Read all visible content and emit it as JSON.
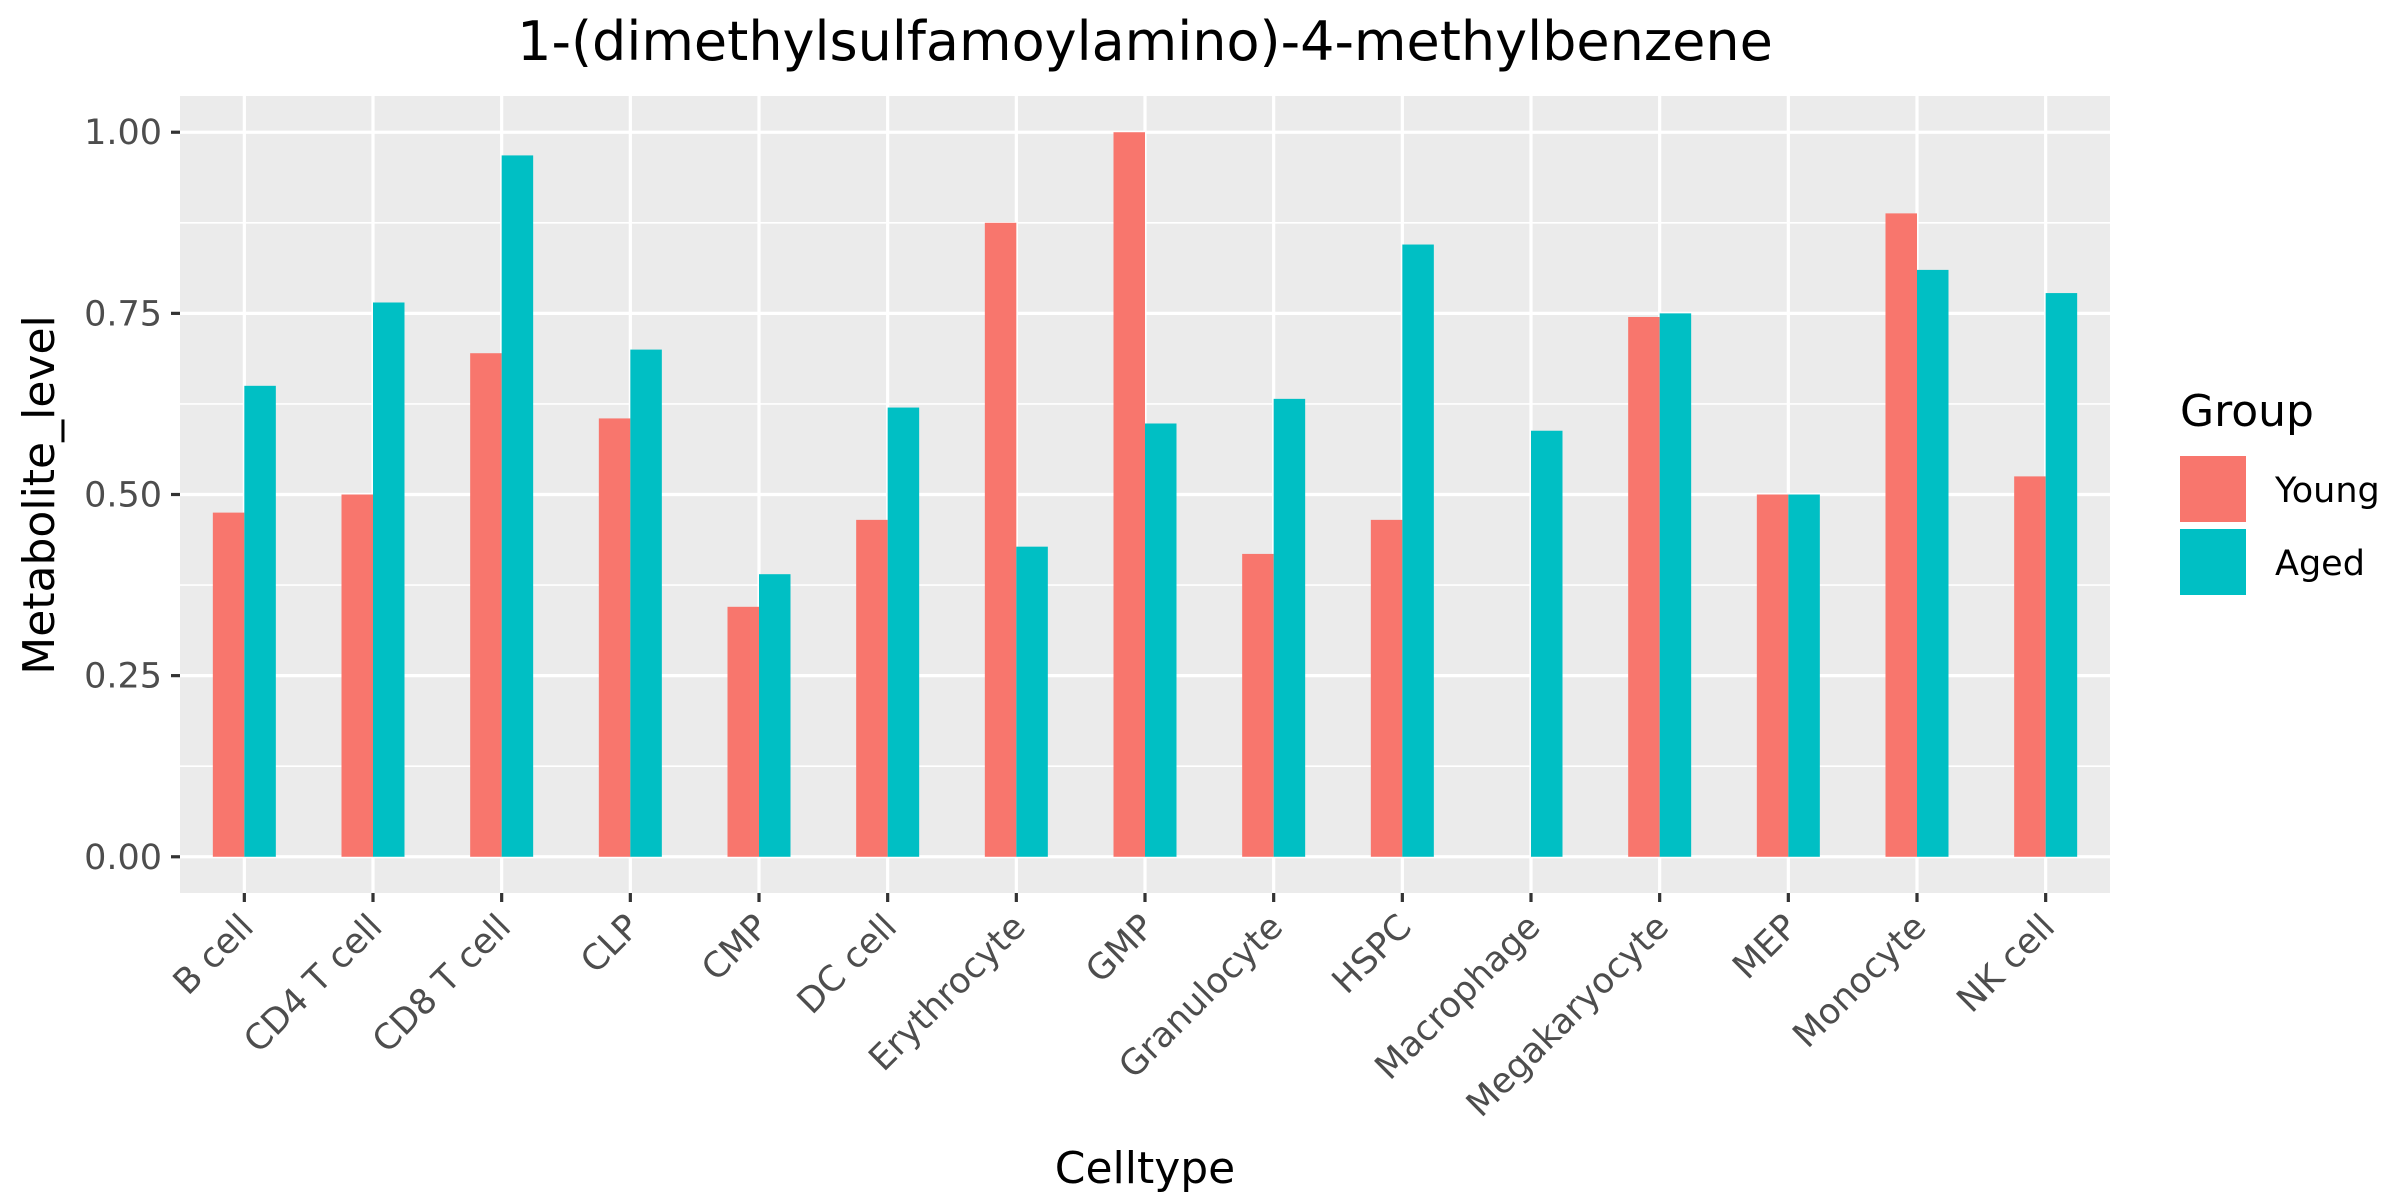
{
  "chart_data": {
    "type": "bar",
    "title": "1-(dimethylsulfamoylamino)-4-methylbenzene",
    "xlabel": "Celltype",
    "ylabel": "Metabolite_level",
    "ylim": [
      -0.05,
      1.05
    ],
    "yticks": [
      0.0,
      0.25,
      0.5,
      0.75,
      1.0
    ],
    "ytick_labels": [
      "0.00",
      "0.25",
      "0.50",
      "0.75",
      "1.00"
    ],
    "grid": true,
    "legend_position": "right",
    "legend_title": "Group",
    "categories": [
      "B cell",
      "CD4 T cell",
      "CD8 T cell",
      "CLP",
      "CMP",
      "DC cell",
      "Erythrocyte",
      "GMP",
      "Granulocyte",
      "HSPC",
      "Macrophage",
      "Megakaryocyte",
      "MEP",
      "Monocyte",
      "NK cell"
    ],
    "series": [
      {
        "name": "Young",
        "color": "#F8766D",
        "values": [
          0.475,
          0.5,
          0.695,
          0.605,
          0.345,
          0.465,
          0.875,
          1.0,
          0.418,
          0.465,
          0.0,
          0.745,
          0.5,
          0.888,
          0.525
        ]
      },
      {
        "name": "Aged",
        "color": "#00BFC4",
        "values": [
          0.65,
          0.765,
          0.968,
          0.7,
          0.39,
          0.62,
          0.428,
          0.598,
          0.632,
          0.845,
          0.588,
          0.75,
          0.5,
          0.81,
          0.778
        ]
      }
    ]
  }
}
